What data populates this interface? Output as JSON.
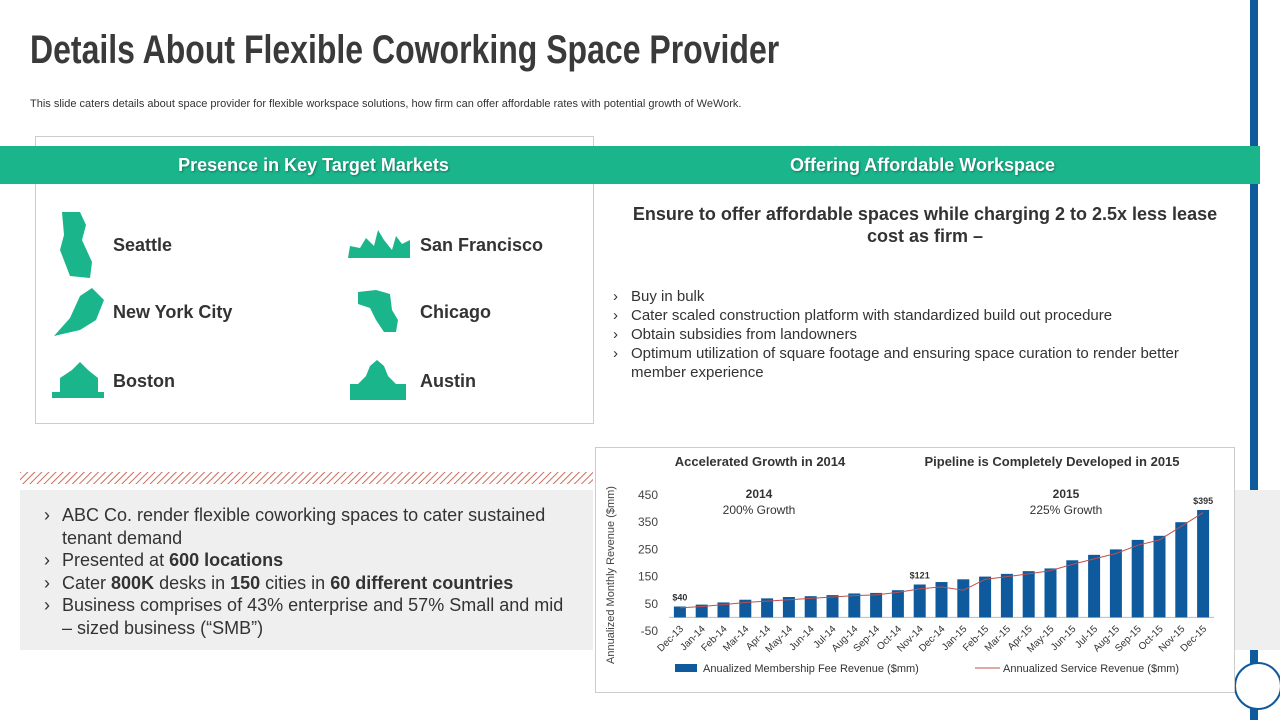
{
  "header": {
    "title": "Details About Flexible Coworking Space Provider",
    "subtitle": "This slide caters details about space provider for flexible workspace solutions, how firm can offer  affordable rates with potential growth of WeWork."
  },
  "markets": {
    "heading": "Presence in Key Target Markets",
    "cities": [
      "Seattle",
      "San Francisco",
      "New York City",
      "Chicago",
      "Boston",
      "Austin"
    ]
  },
  "offering": {
    "heading": "Offering Affordable Workspace",
    "lead": "Ensure to offer affordable spaces while charging 2 to 2.5x less lease cost as firm –",
    "bullets": [
      "Buy in bulk",
      "Cater scaled construction platform with standardized build out procedure",
      "Obtain subsidies from landowners",
      "Optimum utilization of square footage and ensuring space curation to render better member experience"
    ]
  },
  "summary": {
    "bullets": [
      [
        {
          "t": "ABC Co. render flexible coworking spaces to cater sustained tenant demand"
        }
      ],
      [
        {
          "t": "Presented at "
        },
        {
          "t": "600 locations",
          "b": true
        }
      ],
      [
        {
          "t": "Cater "
        },
        {
          "t": "800K",
          "b": true
        },
        {
          "t": " desks in "
        },
        {
          "t": "150",
          "b": true
        },
        {
          "t": " cities in "
        },
        {
          "t": "60 different countries",
          "b": true
        }
      ],
      [
        {
          "t": "Business comprises of  43% enterprise and 57% Small and mid – sized business (“SMB”)"
        }
      ]
    ]
  },
  "chart_data": {
    "type": "bar",
    "annotations": [
      "Accelerated Growth in 2014",
      "Pipeline is Completely Developed in 2015",
      "2014",
      "200% Growth",
      "2015",
      "225% Growth"
    ],
    "y_label": "Annualized Monthly Revenue  ($mm)",
    "categories": [
      "Dec-13",
      "Jan-14",
      "Feb-14",
      "Mar-14",
      "Apr-14",
      "May-14",
      "Jun-14",
      "Jul-14",
      "Aug-14",
      "Sep-14",
      "Oct-14",
      "Nov-14",
      "Dec-14",
      "Jan-15",
      "Feb-15",
      "Mar-15",
      "Apr-15",
      "May-15",
      "Jun-15",
      "Jul-15",
      "Aug-15",
      "Sep-15",
      "Oct-15",
      "Nov-15",
      "Dec-15"
    ],
    "series": [
      {
        "name": "Anualized Membership Fee Revenue ($mm)",
        "color": "#0e5a9c",
        "values": [
          40,
          47,
          55,
          65,
          70,
          75,
          78,
          82,
          88,
          90,
          100,
          121,
          130,
          140,
          150,
          160,
          170,
          180,
          210,
          230,
          250,
          285,
          300,
          350,
          395
        ],
        "value_labels": [
          "$40",
          null,
          null,
          null,
          null,
          null,
          null,
          null,
          null,
          null,
          null,
          "$121",
          null,
          null,
          null,
          null,
          null,
          null,
          null,
          null,
          null,
          null,
          null,
          null,
          "$395"
        ]
      },
      {
        "name": "Annualized Service Revenue ($mm)",
        "color": "#c0504d",
        "kind": "line",
        "values": [
          35,
          40,
          47,
          55,
          60,
          65,
          70,
          75,
          80,
          83,
          92,
          105,
          112,
          100,
          140,
          150,
          160,
          172,
          195,
          215,
          235,
          265,
          285,
          335,
          385
        ]
      }
    ],
    "ylim": [
      -50,
      450
    ],
    "yticks": [
      -50,
      50,
      150,
      250,
      350,
      450
    ],
    "grid": false
  }
}
